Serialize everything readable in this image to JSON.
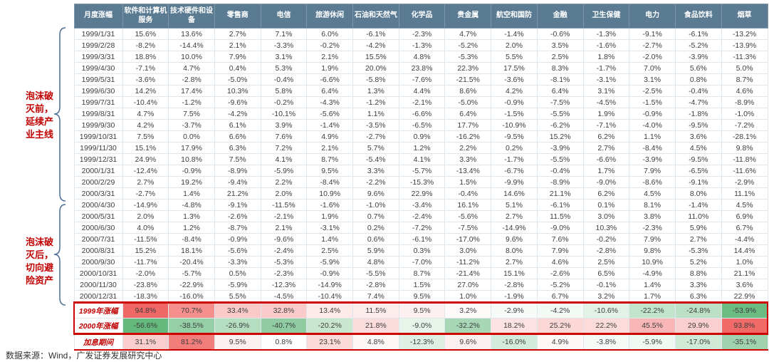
{
  "colors": {
    "header_bg": "#5b7b93",
    "positive_full": "#ee5856",
    "negative_full": "#55b270",
    "annotation_red": "#c00000",
    "highlight_box": "#cc0000",
    "brace_blue": "#4a6e96"
  },
  "annotations": [
    {
      "text": "泡沫破灭前，延续产业主线"
    },
    {
      "text": "泡沫破灭后，切向避险资产"
    }
  ],
  "source": "数据来源：Wind，广发证券发展研究中心",
  "chart_data": {
    "type": "table",
    "title": "",
    "corner_header": "月度涨幅",
    "unit": "%",
    "columns": [
      "软件和计算机服务",
      "技术硬件和设备",
      "零售商",
      "电信",
      "旅游休闲",
      "石油和天然气",
      "化学品",
      "贵金属",
      "航空和国防",
      "金融",
      "卫生保健",
      "电力",
      "食品饮料",
      "烟草"
    ],
    "rows": [
      {
        "date": "1999/1/31",
        "values": [
          15.6,
          13.6,
          2.7,
          7.1,
          6.0,
          -6.1,
          -2.3,
          4.7,
          -1.4,
          -0.6,
          -1.3,
          -9.1,
          -6.1,
          -13.2
        ]
      },
      {
        "date": "1999/2/28",
        "values": [
          -8.2,
          -14.4,
          2.1,
          -3.3,
          -0.2,
          -4.2,
          -1.3,
          -5.2,
          2.0,
          3.5,
          -1.6,
          -2.7,
          -5.2,
          -13.9
        ]
      },
      {
        "date": "1999/3/31",
        "values": [
          18.8,
          10.0,
          7.9,
          3.1,
          2.1,
          15.5,
          4.8,
          -5.3,
          5.5,
          2.5,
          1.8,
          -2.0,
          -3.9,
          -11.3
        ]
      },
      {
        "date": "1999/4/30",
        "values": [
          -7.1,
          4.7,
          0.4,
          5.3,
          1.9,
          20.0,
          23.8,
          22.3,
          17.5,
          8.3,
          -1.7,
          7.0,
          5.6,
          5.0
        ]
      },
      {
        "date": "1999/5/31",
        "values": [
          -3.6,
          -2.8,
          -5.0,
          -0.4,
          -6.6,
          -5.8,
          -7.6,
          -21.5,
          -3.6,
          -8.1,
          -3.1,
          3.1,
          0.8,
          8.7
        ]
      },
      {
        "date": "1999/6/30",
        "values": [
          14.2,
          17.4,
          10.3,
          5.8,
          6.4,
          1.3,
          4.4,
          8.6,
          4.2,
          6.4,
          3.1,
          -2.5,
          -0.4,
          4.6
        ]
      },
      {
        "date": "1999/7/31",
        "values": [
          -10.4,
          -1.2,
          -9.6,
          -0.2,
          -4.3,
          -1.2,
          -2.1,
          -5.0,
          -0.9,
          -7.5,
          -4.5,
          -1.5,
          -4.7,
          -8.9
        ]
      },
      {
        "date": "1999/8/31",
        "values": [
          4.7,
          7.5,
          -4.2,
          -10.1,
          -5.6,
          1.1,
          -6.6,
          6.4,
          -1.5,
          -5.5,
          1.9,
          -0.9,
          -1.8,
          -1.0
        ]
      },
      {
        "date": "1999/9/30",
        "values": [
          4.2,
          -3.7,
          6.1,
          3.9,
          -1.4,
          -3.5,
          -6.5,
          17.7,
          -10.9,
          -6.2,
          -7.1,
          -4.0,
          -9.5,
          -7.2
        ]
      },
      {
        "date": "1999/10/31",
        "values": [
          7.5,
          0.0,
          6.6,
          7.6,
          4.9,
          -2.7,
          0.9,
          -16.2,
          -9.5,
          15.2,
          6.2,
          1.1,
          3.6,
          -28.1
        ]
      },
      {
        "date": "1999/11/30",
        "values": [
          15.1,
          17.9,
          6.3,
          7.2,
          2.1,
          5.7,
          1.2,
          2.2,
          0.2,
          -3.9,
          2.7,
          -8.4,
          4.5,
          9.8
        ]
      },
      {
        "date": "1999/12/31",
        "values": [
          24.9,
          10.8,
          7.5,
          4.1,
          8.7,
          -5.4,
          4.1,
          3.3,
          -1.7,
          -5.5,
          -6.6,
          -3.9,
          -9.5,
          -11.8
        ]
      },
      {
        "date": "2000/1/31",
        "values": [
          -12.4,
          -0.9,
          -8.9,
          -5.9,
          9.5,
          3.3,
          -5.7,
          -13.4,
          -6.7,
          -0.4,
          1.7,
          7.9,
          -6.5,
          -11.6
        ]
      },
      {
        "date": "2000/2/29",
        "values": [
          2.7,
          19.2,
          -9.4,
          2.2,
          -8.4,
          -2.2,
          -15.3,
          1.5,
          -9.9,
          -8.9,
          -9.0,
          -8.6,
          -9.1,
          -2.9
        ]
      },
      {
        "date": "2000/3/31",
        "values": [
          -2.7,
          1.4,
          21.2,
          2.0,
          10.9,
          9.6,
          22.9,
          -0.4,
          14.6,
          21.1,
          6.2,
          4.5,
          8.0,
          11.1
        ]
      },
      {
        "date": "2000/4/30",
        "values": [
          -14.9,
          -4.8,
          -9.1,
          -11.5,
          -1.6,
          -1.0,
          -3.4,
          16.1,
          5.1,
          -6.1,
          0.1,
          8.1,
          -1.4,
          4.5
        ]
      },
      {
        "date": "2000/5/31",
        "values": [
          2.0,
          1.3,
          -2.6,
          -2.1,
          1.9,
          0.7,
          -2.4,
          -5.6,
          2.7,
          11.5,
          3.0,
          3.8,
          11.0,
          6.9
        ]
      },
      {
        "date": "2000/6/30",
        "values": [
          4.0,
          1.2,
          -8.7,
          2.1,
          -3.1,
          0.2,
          -7.2,
          -7.5,
          -14.9,
          -9.0,
          10.3,
          -2.3,
          5.9,
          6.7
        ]
      },
      {
        "date": "2000/7/31",
        "values": [
          -11.5,
          -8.4,
          -0.9,
          -9.6,
          1.4,
          0.6,
          -6.1,
          -17.0,
          9.6,
          7.6,
          -0.2,
          7.9,
          2.7,
          -4.4
        ]
      },
      {
        "date": "2000/8/31",
        "values": [
          15.2,
          18.1,
          -5.6,
          -2.4,
          2.5,
          5.9,
          0.3,
          3.0,
          8.0,
          7.9,
          -2.8,
          9.8,
          -5.3,
          14.4
        ]
      },
      {
        "date": "2000/9/30",
        "values": [
          -11.7,
          -20.4,
          -3.3,
          -5.3,
          -5.9,
          4.8,
          -7.0,
          -11.2,
          2.7,
          4.6,
          2.5,
          10.9,
          5.2,
          1.0
        ]
      },
      {
        "date": "2000/10/31",
        "values": [
          -2.0,
          -5.7,
          0.5,
          -2.3,
          -0.9,
          -5.5,
          8.7,
          -21.4,
          15.1,
          -2.6,
          6.5,
          -4.9,
          8.8,
          21.1
        ]
      },
      {
        "date": "2000/11/30",
        "values": [
          -23.8,
          -22.9,
          -5.9,
          -12.3,
          -14.9,
          -2.8,
          1.5,
          27.0,
          -2.8,
          -5.2,
          -0.1,
          1.4,
          3.3,
          3.6
        ]
      },
      {
        "date": "2000/12/31",
        "values": [
          -18.3,
          -16.0,
          5.5,
          -4.5,
          -10.4,
          7.4,
          9.5,
          1.0,
          -1.9,
          6.7,
          3.2,
          1.7,
          6.3,
          22.9
        ]
      }
    ],
    "summary_rows": [
      {
        "label": "1999年涨幅",
        "values": [
          94.8,
          70.7,
          33.4,
          32.8,
          13.4,
          11.5,
          9.5,
          3.2,
          -2.9,
          -4.2,
          -10.6,
          -22.2,
          -24.8,
          -53.9
        ]
      },
      {
        "label": "2000年涨幅",
        "values": [
          -56.6,
          -38.5,
          -26.9,
          -40.7,
          -20.2,
          21.8,
          -9.0,
          -32.2,
          18.2,
          25.2,
          22.2,
          45.5,
          29.9,
          93.8
        ]
      },
      {
        "label": "加息期间",
        "values": [
          31.1,
          81.2,
          9.5,
          0.8,
          23.1,
          4.8,
          -12.3,
          9.6,
          -16.0,
          4.9,
          -3.8,
          -5.9,
          -17.0,
          -35.1
        ]
      }
    ]
  }
}
